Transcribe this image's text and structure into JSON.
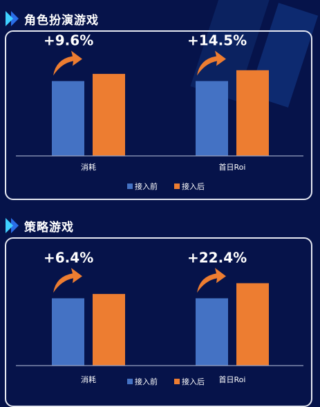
{
  "colors": {
    "before": "#4472c4",
    "after": "#ed7d31",
    "background": "#06134a",
    "arrow": "#ed7d31",
    "axis": "#9aa3c2"
  },
  "sections": [
    {
      "title": "角色扮演游戏"
    },
    {
      "title": "策略游戏"
    }
  ],
  "chart_data": [
    {
      "type": "bar",
      "title": "角色扮演游戏",
      "categories": [
        "消耗",
        "首日Roi"
      ],
      "series": [
        {
          "name": "接入前",
          "values": [
            100,
            100
          ]
        },
        {
          "name": "接入后",
          "values": [
            109.6,
            114.5
          ]
        }
      ],
      "annotations": [
        "+9.6%",
        "+14.5%"
      ],
      "legend_position": "bottom",
      "grid": false
    },
    {
      "type": "bar",
      "title": "策略游戏",
      "categories": [
        "消耗",
        "首日Roi"
      ],
      "series": [
        {
          "name": "接入前",
          "values": [
            100,
            100
          ]
        },
        {
          "name": "接入后",
          "values": [
            106.4,
            122.4
          ]
        }
      ],
      "annotations": [
        "+6.4%",
        "+22.4%"
      ],
      "legend_position": "bottom",
      "grid": false
    }
  ]
}
